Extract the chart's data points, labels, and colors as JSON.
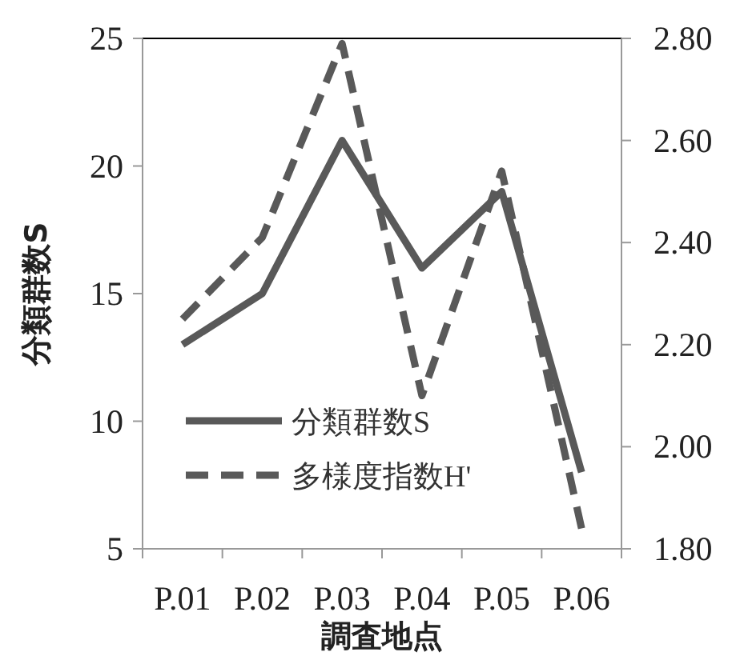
{
  "chart_data": {
    "type": "line",
    "xlabel": "調査地点",
    "ylabel": "分類群数S",
    "categories": [
      "P.01",
      "P.02",
      "P.03",
      "P.04",
      "P.05",
      "P.06"
    ],
    "series": [
      {
        "name": "分類群数S",
        "color": "#595959",
        "values": [
          13,
          15,
          21,
          16,
          19,
          8
        ],
        "line_style": "solid"
      },
      {
        "name": "多様度指数H'",
        "color": "#595959",
        "values": [
          2.25,
          2.41,
          2.79,
          2.1,
          2.54,
          1.84
        ],
        "line_style": "dashed",
        "axis": "y2"
      }
    ],
    "ylim": [
      5,
      25
    ],
    "yticks": [
      5,
      10,
      15,
      20,
      25
    ],
    "y2lim": [
      1.8,
      2.8
    ],
    "y2ticks": [
      {
        "value": 1.8,
        "label": "1.80"
      },
      {
        "value": 2.0,
        "label": "2.00"
      },
      {
        "value": 2.2,
        "label": "2.20"
      },
      {
        "value": 2.4,
        "label": "2.40"
      },
      {
        "value": 2.6,
        "label": "2.60"
      },
      {
        "value": 2.8,
        "label": "2.80"
      }
    ],
    "grid": false,
    "legend": "bottom left",
    "marker": "none"
  }
}
